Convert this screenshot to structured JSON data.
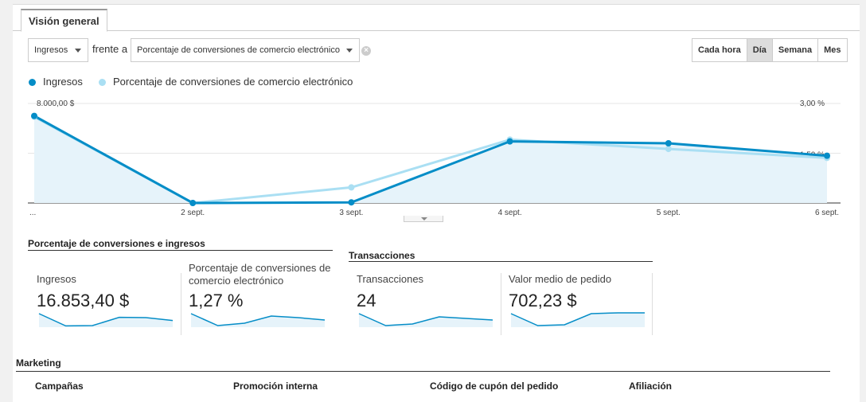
{
  "tabs": {
    "overview": "Visión general"
  },
  "controls": {
    "metric1": "Ingresos",
    "versus": "frente a",
    "metric2": "Porcentaje de conversiones de comercio electrónico"
  },
  "granularity": {
    "hourly": "Cada hora",
    "day": "Día",
    "week": "Semana",
    "month": "Mes",
    "selected": "day"
  },
  "colors": {
    "primary": "#058dc7",
    "secondary": "#aadff3",
    "fill": "#e6f3fa"
  },
  "chart_data": {
    "type": "line",
    "x": [
      "...",
      "2 sept.",
      "3 sept.",
      "4 sept.",
      "5 sept.",
      "6 sept."
    ],
    "series": [
      {
        "name": "Ingresos",
        "values": [
          7000,
          0,
          50,
          4950,
          4800,
          3800
        ],
        "axis": "left",
        "color": "#058dc7"
      },
      {
        "name": "Porcentaje de conversiones de comercio electrónico",
        "values": [
          2.6,
          0,
          0.47,
          1.91,
          1.63,
          1.36
        ],
        "axis": "right",
        "color": "#aadff3"
      }
    ],
    "y_left_ticks": [
      "8.000,00 $",
      "4.000,00 $"
    ],
    "y_left_max": 8000,
    "y_right_ticks": [
      "3,00 %",
      "1,50 %"
    ],
    "y_right_max": 3.0,
    "legend_position": "top-left",
    "grid": true
  },
  "sections": {
    "conversion": {
      "title": "Porcentaje de conversiones e ingresos",
      "metrics": [
        {
          "label": "Ingresos",
          "value": "16.853,40 $",
          "spark": [
            0.85,
            0.08,
            0.1,
            0.62,
            0.6,
            0.42
          ]
        },
        {
          "label": "Porcentaje de conversiones de comercio electrónico",
          "value": "1,27 %",
          "spark": [
            0.85,
            0.1,
            0.25,
            0.7,
            0.6,
            0.45
          ]
        }
      ]
    },
    "transactions": {
      "title": "Transacciones",
      "metrics": [
        {
          "label": "Transacciones",
          "value": "24",
          "spark": [
            0.85,
            0.1,
            0.2,
            0.65,
            0.55,
            0.45
          ]
        },
        {
          "label": "Valor medio de pedido",
          "value": "702,23 $",
          "spark": [
            0.85,
            0.1,
            0.15,
            0.85,
            0.9,
            0.9
          ]
        }
      ]
    }
  },
  "marketing": {
    "title": "Marketing",
    "columns": [
      "Campañas",
      "Promoción interna",
      "Código de cupón del pedido",
      "Afiliación"
    ]
  }
}
